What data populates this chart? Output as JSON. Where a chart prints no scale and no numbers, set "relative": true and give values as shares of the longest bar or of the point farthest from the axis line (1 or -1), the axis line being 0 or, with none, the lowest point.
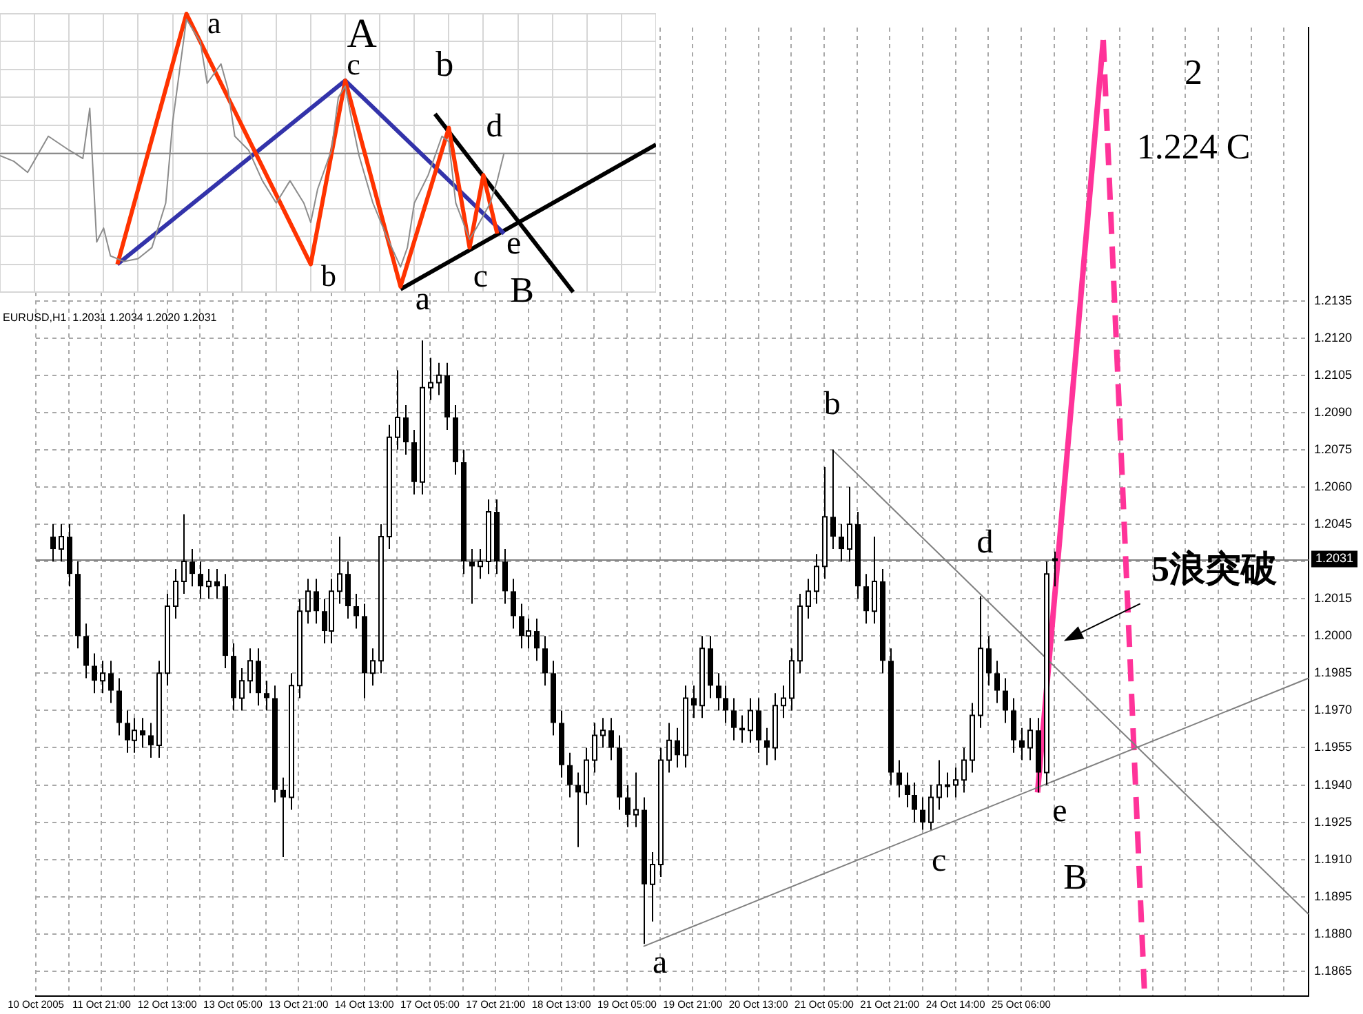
{
  "chart_data": [
    {
      "type": "line",
      "relative": true,
      "tick_labels": false,
      "grid": true,
      "categories": [
        null,
        null,
        null,
        null,
        null,
        null,
        null,
        null,
        null,
        null,
        null,
        null,
        null,
        null,
        null,
        null,
        null,
        null,
        null,
        null,
        null,
        null,
        null,
        null,
        null,
        null,
        null,
        null,
        null,
        null,
        null,
        null,
        null,
        null,
        null,
        null,
        null,
        null,
        null,
        null,
        null,
        null,
        null,
        null,
        null,
        null,
        null,
        null,
        null,
        null,
        null,
        null,
        null,
        null,
        null,
        null,
        null,
        null,
        null,
        null,
        null,
        null,
        null,
        null,
        null,
        null,
        null,
        null,
        null,
        null,
        null,
        null,
        null,
        null,
        null,
        null,
        null,
        null,
        null,
        null,
        null,
        null,
        null,
        null,
        null,
        null,
        null,
        null,
        null,
        null,
        null,
        null,
        null,
        null,
        null,
        null
      ],
      "series": [
        {
          "type": "line",
          "color": "#8c8c8c",
          "values": [
            0.49,
            null,
            0.47,
            null,
            0.43,
            null,
            null,
            0.56,
            null,
            null,
            0.51,
            null,
            0.48,
            0.66,
            0.18,
            0.23,
            0.13,
            null,
            0.11,
            null,
            0.12,
            null,
            0.16,
            null,
            0.32,
            0.61,
            null,
            0.98,
            null,
            0.9,
            0.75,
            null,
            0.82,
            0.73,
            0.56,
            null,
            0.51,
            null,
            0.4,
            null,
            0.32,
            null,
            0.4,
            null,
            0.32,
            0.25,
            0.37,
            null,
            0.51,
            0.7,
            0.74,
            0.61,
            0.49,
            null,
            0.32,
            null,
            0.2,
            null,
            0.09,
            0.16,
            0.32,
            null,
            0.42,
            null,
            0.56,
            0.54,
            0.32,
            null,
            0.19,
            0.23,
            null,
            0.32,
            0.4,
            0.5,
            null,
            null,
            null,
            null,
            null,
            null,
            null,
            null,
            null,
            null,
            null,
            null,
            null,
            null,
            null,
            null,
            null,
            null,
            null,
            null,
            null,
            null
          ]
        },
        {
          "type": "line",
          "color": "#ff3300",
          "values": [
            null,
            null,
            null,
            null,
            null,
            null,
            null,
            null,
            null,
            null,
            null,
            null,
            null,
            null,
            null,
            null,
            null,
            0.1,
            null,
            null,
            null,
            null,
            null,
            null,
            null,
            null,
            null,
            1.0,
            null,
            null,
            null,
            null,
            null,
            null,
            null,
            null,
            null,
            null,
            null,
            null,
            null,
            null,
            null,
            null,
            null,
            0.1,
            null,
            null,
            null,
            null,
            0.76,
            null,
            null,
            null,
            null,
            null,
            null,
            null,
            0.02,
            null,
            null,
            null,
            null,
            null,
            null,
            0.59,
            null,
            null,
            0.16,
            null,
            0.42,
            null,
            0.21,
            null,
            null,
            null,
            null,
            null,
            null,
            null,
            null,
            null,
            null,
            null,
            null,
            null,
            null,
            null,
            null,
            null,
            null,
            null,
            null,
            null,
            null,
            null
          ]
        },
        {
          "type": "line",
          "color": "#3333aa",
          "values": [
            null,
            null,
            null,
            null,
            null,
            null,
            null,
            null,
            null,
            null,
            null,
            null,
            null,
            null,
            null,
            null,
            null,
            0.1,
            null,
            null,
            null,
            null,
            null,
            null,
            null,
            null,
            null,
            null,
            null,
            null,
            null,
            null,
            null,
            null,
            null,
            null,
            null,
            null,
            null,
            null,
            null,
            null,
            null,
            null,
            null,
            null,
            null,
            null,
            null,
            null,
            0.76,
            null,
            null,
            null,
            null,
            null,
            null,
            null,
            null,
            null,
            null,
            null,
            null,
            null,
            null,
            null,
            null,
            null,
            null,
            null,
            null,
            null,
            null,
            0.21,
            null,
            null,
            null,
            null,
            null,
            null,
            null,
            null,
            null,
            null,
            null,
            null,
            null,
            null,
            null,
            null,
            null,
            null,
            null,
            null,
            null,
            null
          ]
        },
        {
          "type": "line",
          "color": "#000000",
          "values": [
            null,
            null,
            null,
            null,
            null,
            null,
            null,
            null,
            null,
            null,
            null,
            null,
            null,
            null,
            null,
            null,
            null,
            null,
            null,
            null,
            null,
            null,
            null,
            null,
            null,
            null,
            null,
            null,
            null,
            null,
            null,
            null,
            null,
            null,
            null,
            null,
            null,
            null,
            null,
            null,
            null,
            null,
            null,
            null,
            null,
            null,
            null,
            null,
            null,
            null,
            null,
            null,
            null,
            null,
            null,
            null,
            null,
            null,
            null,
            null,
            null,
            null,
            null,
            0.64,
            null,
            null,
            null,
            null,
            null,
            null,
            null,
            null,
            null,
            null,
            null,
            null,
            null,
            null,
            null,
            null,
            null,
            null,
            null,
            0,
            null,
            null,
            null,
            null,
            null,
            null,
            null,
            null,
            null,
            null,
            null,
            null
          ]
        },
        {
          "type": "line",
          "color": "#000000",
          "values": [
            null,
            null,
            null,
            null,
            null,
            null,
            null,
            null,
            null,
            null,
            null,
            null,
            null,
            null,
            null,
            null,
            null,
            null,
            null,
            null,
            null,
            null,
            null,
            null,
            null,
            null,
            null,
            null,
            null,
            null,
            null,
            null,
            null,
            null,
            null,
            null,
            null,
            null,
            null,
            null,
            null,
            null,
            null,
            null,
            null,
            null,
            null,
            null,
            null,
            null,
            null,
            null,
            null,
            null,
            null,
            null,
            null,
            null,
            0.01,
            null,
            null,
            null,
            null,
            null,
            null,
            null,
            null,
            null,
            null,
            null,
            null,
            null,
            null,
            null,
            null,
            null,
            null,
            null,
            null,
            null,
            null,
            null,
            null,
            null,
            null,
            null,
            null,
            null,
            null,
            null,
            null,
            null,
            null,
            null,
            null,
            0.53
          ]
        }
      ],
      "ref_lines": [
        {
          "axis": "y",
          "value": 0.5,
          "color": "#8c8c8c"
        }
      ],
      "annotations": [
        "a",
        "A",
        "c",
        "b",
        "b",
        "d",
        "e",
        "c",
        "a",
        "B"
      ]
    },
    {
      "type": "candlestick",
      "grid": true,
      "categories": [
        "10 Oct 2005",
        null,
        null,
        null,
        null,
        null,
        null,
        null,
        "11 Oct 21:00",
        null,
        null,
        null,
        null,
        null,
        null,
        null,
        "12 Oct 13:00",
        null,
        null,
        null,
        null,
        null,
        null,
        null,
        "13 Oct 05:00",
        null,
        null,
        null,
        null,
        null,
        null,
        null,
        "13 Oct 21:00",
        null,
        null,
        null,
        null,
        null,
        null,
        null,
        "14 Oct 13:00",
        null,
        null,
        null,
        null,
        null,
        null,
        null,
        "17 Oct 05:00",
        null,
        null,
        null,
        null,
        null,
        null,
        null,
        "17 Oct 21:00",
        null,
        null,
        null,
        null,
        null,
        null,
        null,
        "18 Oct 13:00",
        null,
        null,
        null,
        null,
        null,
        null,
        null,
        "19 Oct 05:00",
        null,
        null,
        null,
        null,
        null,
        null,
        null,
        "19 Oct 21:00",
        null,
        null,
        null,
        null,
        null,
        null,
        null,
        "20 Oct 13:00",
        null,
        null,
        null,
        null,
        null,
        null,
        null,
        "21 Oct 05:00",
        null,
        null,
        null,
        null,
        null,
        null,
        null,
        "21 Oct 21:00",
        null,
        null,
        null,
        null,
        null,
        null,
        null,
        "24 Oct 14:00",
        null,
        null,
        null,
        null,
        null,
        null,
        null,
        "25 Oct 06:00",
        null,
        null,
        null,
        null,
        null,
        null,
        null,
        null,
        null,
        null,
        null,
        null,
        null,
        null,
        null,
        null,
        null,
        null,
        null,
        null,
        null,
        null,
        null,
        null,
        null,
        null,
        null,
        null,
        null,
        null,
        null,
        null,
        null,
        null,
        null
      ],
      "ohlc": [
        null,
        null,
        [
          1.204,
          1.2045,
          1.203,
          1.2035
        ],
        [
          1.2035,
          1.2045,
          1.203,
          1.204
        ],
        [
          1.204,
          1.2045,
          1.202,
          1.2025
        ],
        [
          1.2025,
          1.203,
          1.1995,
          1.2
        ],
        [
          1.2,
          1.2005,
          1.1983,
          1.1988
        ],
        [
          1.1988,
          1.1993,
          1.1977,
          1.1982
        ],
        [
          1.1982,
          1.199,
          1.1977,
          1.1985
        ],
        [
          1.1985,
          1.199,
          1.1973,
          1.1978
        ],
        [
          1.1978,
          1.1983,
          1.196,
          1.1965
        ],
        [
          1.1965,
          1.197,
          1.1953,
          1.1958
        ],
        [
          1.1958,
          1.1967,
          1.1953,
          1.1962
        ],
        [
          1.1962,
          1.1967,
          1.1955,
          1.196
        ],
        [
          1.196,
          1.1965,
          1.1951,
          1.1956
        ],
        [
          1.1956,
          1.199,
          1.1951,
          1.1985
        ],
        [
          1.1985,
          1.2017,
          1.198,
          1.2012
        ],
        [
          1.2012,
          1.2027,
          1.2007,
          1.2022
        ],
        [
          1.2022,
          1.2049,
          1.2017,
          1.203
        ],
        [
          1.203,
          1.2035,
          1.202,
          1.2025
        ],
        [
          1.2025,
          1.203,
          1.2015,
          1.202
        ],
        [
          1.202,
          1.2027,
          1.2015,
          1.2022
        ],
        [
          1.2022,
          1.2027,
          1.2015,
          1.202
        ],
        [
          1.202,
          1.2025,
          1.1987,
          1.1992
        ],
        [
          1.1992,
          1.1997,
          1.197,
          1.1975
        ],
        [
          1.1975,
          1.1987,
          1.197,
          1.1982
        ],
        [
          1.1982,
          1.1995,
          1.1977,
          1.199
        ],
        [
          1.199,
          1.1995,
          1.1972,
          1.1977
        ],
        [
          1.1977,
          1.1982,
          1.197,
          1.1975
        ],
        [
          1.1975,
          1.198,
          1.1933,
          1.1938
        ],
        [
          1.1938,
          1.1943,
          1.1911,
          1.1935
        ],
        [
          1.1935,
          1.1985,
          1.193,
          1.198
        ],
        [
          1.198,
          1.2015,
          1.1975,
          1.201
        ],
        [
          1.201,
          1.2023,
          1.2005,
          1.2018
        ],
        [
          1.2018,
          1.2023,
          1.2005,
          1.201
        ],
        [
          1.201,
          1.2015,
          1.1997,
          1.2002
        ],
        [
          1.2002,
          1.2023,
          1.1997,
          1.2018
        ],
        [
          1.2018,
          1.204,
          1.2013,
          1.2025
        ],
        [
          1.2025,
          1.203,
          1.2007,
          1.2012
        ],
        [
          1.2012,
          1.2017,
          1.2003,
          1.2008
        ],
        [
          1.2008,
          1.2013,
          1.1975,
          1.1985
        ],
        [
          1.1985,
          1.1995,
          1.198,
          1.199
        ],
        [
          1.199,
          1.2045,
          1.1985,
          1.204
        ],
        [
          1.204,
          1.2085,
          1.2035,
          1.208
        ],
        [
          1.208,
          1.2107,
          1.2075,
          1.2088
        ],
        [
          1.2088,
          1.2093,
          1.2073,
          1.2078
        ],
        [
          1.2078,
          1.2083,
          1.2057,
          1.2062
        ],
        [
          1.2062,
          1.2119,
          1.2057,
          1.21
        ],
        [
          1.21,
          1.2112,
          1.2095,
          1.2102
        ],
        [
          1.2102,
          1.211,
          1.2097,
          1.2105
        ],
        [
          1.2105,
          1.211,
          1.2083,
          1.2088
        ],
        [
          1.2088,
          1.2093,
          1.2065,
          1.207
        ],
        [
          1.207,
          1.2075,
          1.2025,
          1.203
        ],
        [
          1.203,
          1.2035,
          1.2013,
          1.2028
        ],
        [
          1.2028,
          1.2035,
          1.2023,
          1.203
        ],
        [
          1.203,
          1.2055,
          1.2025,
          1.205
        ],
        [
          1.205,
          1.2055,
          1.2025,
          1.203
        ],
        [
          1.203,
          1.2035,
          1.2013,
          1.2018
        ],
        [
          1.2018,
          1.2023,
          1.2003,
          1.2008
        ],
        [
          1.2008,
          1.2013,
          1.1995,
          1.2
        ],
        [
          1.2,
          1.2007,
          1.1995,
          1.2002
        ],
        [
          1.2002,
          1.2007,
          1.199,
          1.1995
        ],
        [
          1.1995,
          1.2,
          1.198,
          1.1985
        ],
        [
          1.1985,
          1.199,
          1.196,
          1.1965
        ],
        [
          1.1965,
          1.197,
          1.1943,
          1.1948
        ],
        [
          1.1948,
          1.1953,
          1.1935,
          1.194
        ],
        [
          1.194,
          1.1945,
          1.1915,
          1.1937
        ],
        [
          1.1937,
          1.1955,
          1.1932,
          1.195
        ],
        [
          1.195,
          1.1965,
          1.1945,
          1.196
        ],
        [
          1.196,
          1.1967,
          1.1955,
          1.1962
        ],
        [
          1.1962,
          1.1967,
          1.195,
          1.1955
        ],
        [
          1.1955,
          1.196,
          1.193,
          1.1935
        ],
        [
          1.1935,
          1.194,
          1.1923,
          1.1928
        ],
        [
          1.1928,
          1.1945,
          1.1923,
          1.193
        ],
        [
          1.193,
          1.1935,
          1.1876,
          1.19
        ],
        [
          1.19,
          1.1913,
          1.1885,
          1.1908
        ],
        [
          1.1908,
          1.1955,
          1.1903,
          1.195
        ],
        [
          1.195,
          1.1965,
          1.1945,
          1.1958
        ],
        [
          1.1958,
          1.1963,
          1.1947,
          1.1952
        ],
        [
          1.1952,
          1.198,
          1.1947,
          1.1975
        ],
        [
          1.1975,
          1.198,
          1.1967,
          1.1972
        ],
        [
          1.1972,
          1.2,
          1.1967,
          1.1995
        ],
        [
          1.1995,
          1.2,
          1.1975,
          1.198
        ],
        [
          1.198,
          1.1985,
          1.197,
          1.1975
        ],
        [
          1.1975,
          1.198,
          1.1965,
          1.197
        ],
        [
          1.197,
          1.1975,
          1.1958,
          1.1963
        ],
        [
          1.1963,
          1.1968,
          1.1957,
          1.1962
        ],
        [
          1.1962,
          1.1975,
          1.1957,
          1.197
        ],
        [
          1.197,
          1.1975,
          1.1953,
          1.1958
        ],
        [
          1.1958,
          1.1963,
          1.1948,
          1.1955
        ],
        [
          1.1955,
          1.1977,
          1.195,
          1.1972
        ],
        [
          1.1972,
          1.198,
          1.1967,
          1.1975
        ],
        [
          1.1975,
          1.1995,
          1.197,
          1.199
        ],
        [
          1.199,
          1.2017,
          1.1985,
          1.2012
        ],
        [
          1.2012,
          1.2023,
          1.2007,
          1.2018
        ],
        [
          1.2018,
          1.2033,
          1.2013,
          1.2028
        ],
        [
          1.2028,
          1.2068,
          1.2023,
          1.2048
        ],
        [
          1.2048,
          1.2075,
          1.2035,
          1.204
        ],
        [
          1.204,
          1.2045,
          1.203,
          1.2035
        ],
        [
          1.2035,
          1.206,
          1.203,
          1.2045
        ],
        [
          1.2045,
          1.205,
          1.2015,
          1.202
        ],
        [
          1.202,
          1.2025,
          1.2005,
          1.201
        ],
        [
          1.201,
          1.204,
          1.2005,
          1.2022
        ],
        [
          1.2022,
          1.2027,
          1.1985,
          1.199
        ],
        [
          1.199,
          1.1995,
          1.194,
          1.1945
        ],
        [
          1.1945,
          1.195,
          1.1935,
          1.194
        ],
        [
          1.194,
          1.1945,
          1.1931,
          1.1936
        ],
        [
          1.1936,
          1.1941,
          1.1925,
          1.193
        ],
        [
          1.193,
          1.1935,
          1.1922,
          1.1925
        ],
        [
          1.1925,
          1.194,
          1.1922,
          1.1935
        ],
        [
          1.1935,
          1.195,
          1.193,
          1.194
        ],
        [
          1.194,
          1.1945,
          1.1935,
          1.194
        ],
        [
          1.194,
          1.1947,
          1.1935,
          1.1942
        ],
        [
          1.1942,
          1.1955,
          1.1937,
          1.195
        ],
        [
          1.195,
          1.1973,
          1.1945,
          1.1968
        ],
        [
          1.1968,
          1.2016,
          1.1963,
          1.1995
        ],
        [
          1.1995,
          1.2,
          1.198,
          1.1985
        ],
        [
          1.1985,
          1.199,
          1.1973,
          1.1978
        ],
        [
          1.1978,
          1.1983,
          1.1965,
          1.197
        ],
        [
          1.197,
          1.1975,
          1.1953,
          1.1958
        ],
        [
          1.1958,
          1.1963,
          1.195,
          1.1955
        ],
        [
          1.1955,
          1.1967,
          1.195,
          1.1962
        ],
        [
          1.1962,
          1.1967,
          1.1937,
          1.1945
        ],
        [
          1.1945,
          1.203,
          1.194,
          1.2025
        ],
        [
          1.2031,
          1.2034,
          1.202,
          1.2031
        ],
        null,
        null,
        null,
        null,
        null,
        null,
        null,
        null,
        null,
        null,
        null,
        null,
        null,
        null,
        null,
        null,
        null,
        null,
        null,
        null,
        null,
        null,
        null,
        null,
        null,
        null,
        null,
        null,
        null,
        null,
        null
      ],
      "series": [
        {
          "type": "line",
          "color": "#808080",
          "line_style": "solid",
          "values": [
            null,
            null,
            null,
            null,
            null,
            null,
            null,
            null,
            null,
            null,
            null,
            null,
            null,
            null,
            null,
            null,
            null,
            null,
            null,
            null,
            null,
            null,
            null,
            null,
            null,
            null,
            null,
            null,
            null,
            null,
            null,
            null,
            null,
            null,
            null,
            null,
            null,
            null,
            null,
            null,
            null,
            null,
            null,
            null,
            null,
            null,
            null,
            null,
            null,
            null,
            null,
            null,
            null,
            null,
            null,
            null,
            null,
            null,
            null,
            null,
            null,
            null,
            null,
            null,
            null,
            null,
            null,
            null,
            null,
            null,
            null,
            null,
            null,
            null,
            null,
            null,
            null,
            null,
            null,
            null,
            null,
            null,
            null,
            null,
            null,
            null,
            null,
            null,
            null,
            null,
            null,
            null,
            null,
            null,
            null,
            null,
            null,
            1.2075,
            null,
            null,
            null,
            null,
            null,
            null,
            null,
            null,
            null,
            null,
            null,
            null,
            null,
            null,
            null,
            null,
            null,
            null,
            null,
            null,
            null,
            null,
            null,
            null,
            null,
            null,
            null,
            null,
            null,
            null,
            null,
            null,
            null,
            null,
            null,
            null,
            null,
            null,
            null,
            null,
            null,
            null,
            null,
            null,
            null,
            null,
            null,
            null,
            null,
            null,
            null,
            null,
            null,
            null,
            null,
            null,
            null,
            1.1888
          ]
        },
        {
          "type": "line",
          "color": "#808080",
          "line_style": "solid",
          "values": [
            null,
            null,
            null,
            null,
            null,
            null,
            null,
            null,
            null,
            null,
            null,
            null,
            null,
            null,
            null,
            null,
            null,
            null,
            null,
            null,
            null,
            null,
            null,
            null,
            null,
            null,
            null,
            null,
            null,
            null,
            null,
            null,
            null,
            null,
            null,
            null,
            null,
            null,
            null,
            null,
            null,
            null,
            null,
            null,
            null,
            null,
            null,
            null,
            null,
            null,
            null,
            null,
            null,
            null,
            null,
            null,
            null,
            null,
            null,
            null,
            null,
            null,
            null,
            null,
            null,
            null,
            null,
            null,
            null,
            null,
            null,
            null,
            null,
            null,
            1.1875,
            null,
            null,
            null,
            null,
            null,
            null,
            null,
            null,
            null,
            null,
            null,
            null,
            null,
            null,
            null,
            null,
            null,
            null,
            null,
            null,
            null,
            null,
            null,
            null,
            null,
            null,
            null,
            null,
            null,
            null,
            null,
            null,
            null,
            null,
            null,
            null,
            null,
            null,
            null,
            null,
            null,
            null,
            null,
            null,
            null,
            null,
            null,
            null,
            null,
            null,
            null,
            null,
            null,
            null,
            null,
            null,
            null,
            null,
            null,
            null,
            null,
            null,
            null,
            null,
            null,
            null,
            null,
            null,
            null,
            null,
            null,
            null,
            null,
            null,
            null,
            null,
            null,
            null,
            null,
            null,
            1.1983
          ]
        },
        {
          "type": "line",
          "color": "#ff3399",
          "line_style": "solid",
          "values": [
            null,
            null,
            null,
            null,
            null,
            null,
            null,
            null,
            null,
            null,
            null,
            null,
            null,
            null,
            null,
            null,
            null,
            null,
            null,
            null,
            null,
            null,
            null,
            null,
            null,
            null,
            null,
            null,
            null,
            null,
            null,
            null,
            null,
            null,
            null,
            null,
            null,
            null,
            null,
            null,
            null,
            null,
            null,
            null,
            null,
            null,
            null,
            null,
            null,
            null,
            null,
            null,
            null,
            null,
            null,
            null,
            null,
            null,
            null,
            null,
            null,
            null,
            null,
            null,
            null,
            null,
            null,
            null,
            null,
            null,
            null,
            null,
            null,
            null,
            null,
            null,
            null,
            null,
            null,
            null,
            null,
            null,
            null,
            null,
            null,
            null,
            null,
            null,
            null,
            null,
            null,
            null,
            null,
            null,
            null,
            null,
            null,
            null,
            null,
            null,
            null,
            null,
            null,
            null,
            null,
            null,
            null,
            null,
            null,
            null,
            null,
            null,
            null,
            null,
            null,
            null,
            null,
            null,
            null,
            null,
            null,
            null,
            1.1937,
            null,
            null,
            null,
            null,
            null,
            null,
            null,
            1.224,
            null,
            null,
            null,
            null,
            null,
            null,
            null,
            null,
            null,
            null,
            null,
            null,
            null,
            null,
            null,
            null,
            null,
            null,
            null,
            null,
            null,
            null,
            null,
            null,
            null
          ]
        },
        {
          "type": "line",
          "color": "#ff3399",
          "line_style": "dashed",
          "values": [
            null,
            null,
            null,
            null,
            null,
            null,
            null,
            null,
            null,
            null,
            null,
            null,
            null,
            null,
            null,
            null,
            null,
            null,
            null,
            null,
            null,
            null,
            null,
            null,
            null,
            null,
            null,
            null,
            null,
            null,
            null,
            null,
            null,
            null,
            null,
            null,
            null,
            null,
            null,
            null,
            null,
            null,
            null,
            null,
            null,
            null,
            null,
            null,
            null,
            null,
            null,
            null,
            null,
            null,
            null,
            null,
            null,
            null,
            null,
            null,
            null,
            null,
            null,
            null,
            null,
            null,
            null,
            null,
            null,
            null,
            null,
            null,
            null,
            null,
            null,
            null,
            null,
            null,
            null,
            null,
            null,
            null,
            null,
            null,
            null,
            null,
            null,
            null,
            null,
            null,
            null,
            null,
            null,
            null,
            null,
            null,
            null,
            null,
            null,
            null,
            null,
            null,
            null,
            null,
            null,
            null,
            null,
            null,
            null,
            null,
            null,
            null,
            null,
            null,
            null,
            null,
            null,
            null,
            null,
            null,
            null,
            null,
            null,
            null,
            null,
            null,
            null,
            null,
            null,
            null,
            1.224,
            null,
            null,
            null,
            null,
            1.1858,
            null,
            null,
            null,
            null,
            null,
            null,
            null,
            null,
            null,
            null,
            null,
            null,
            null,
            null,
            null,
            null,
            null,
            null,
            null,
            null
          ]
        }
      ],
      "ylim": [
        1.1855,
        1.2245
      ],
      "yticks": [
        1.1865,
        {
          "value": 1.188,
          "label": "1.1880"
        },
        1.1895,
        {
          "value": 1.191,
          "label": "1.1910"
        },
        1.1925,
        {
          "value": 1.194,
          "label": "1.1940"
        },
        1.1955,
        {
          "value": 1.197,
          "label": "1.1970"
        },
        1.1985,
        {
          "value": 1.2,
          "label": "1.2000"
        },
        1.2015,
        {
          "value": 1.203,
          "label": null
        },
        1.2045,
        {
          "value": 1.206,
          "label": "1.2060"
        },
        1.2075,
        {
          "value": 1.209,
          "label": "1.2090"
        },
        1.2105,
        {
          "value": 1.212,
          "label": "1.2120"
        },
        1.2135
      ],
      "ref_lines": [
        {
          "axis": "y",
          "value": 1.2031,
          "label": "1.2031",
          "color": "#808080"
        }
      ],
      "annotations": [
        "EURUSD,H1  1.2031 1.2034 1.2020 1.2031",
        "a",
        "b",
        "c",
        "d",
        "e",
        "B",
        "5浪突破",
        "2",
        "1.224 C"
      ]
    }
  ]
}
